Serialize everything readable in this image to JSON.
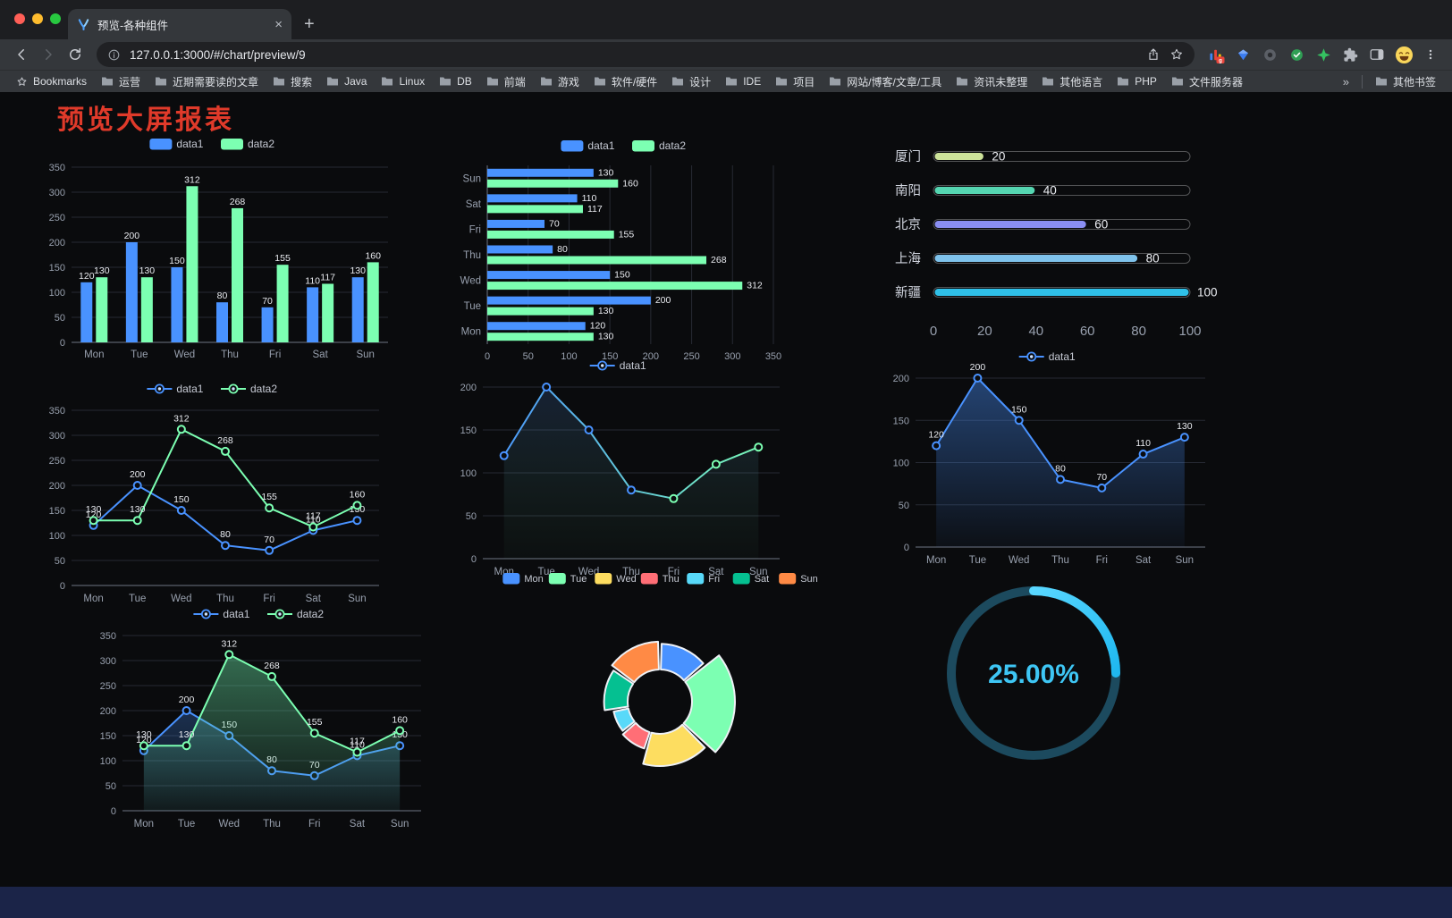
{
  "browser": {
    "traffic_lights": [
      "#ff5f57",
      "#febc2e",
      "#28c840"
    ],
    "tab": {
      "title": "预览-各种组件"
    },
    "new_tab_label": "+",
    "url": "127.0.0.1:3000/#/chart/preview/9",
    "bookmarks_label": "Bookmarks",
    "bookmarks": [
      "运营",
      "近期需要读的文章",
      "搜索",
      "Java",
      "Linux",
      "DB",
      "前端",
      "游戏",
      "软件/硬件",
      "设计",
      "IDE",
      "项目",
      "网站/博客/文章/工具",
      "资讯未整理",
      "其他语言",
      "PHP",
      "文件服务器"
    ],
    "bookmarks_overflow": "»",
    "other_bookmarks": "其他书签"
  },
  "page": {
    "title": "预览大屏报表",
    "title_color": "#e03a2a",
    "background": "#0a0b0d",
    "footer_color": "#1b2448"
  },
  "chart_data": [
    {
      "id": "bar-grouped",
      "type": "bar",
      "legend_position": "top",
      "categories": [
        "Mon",
        "Tue",
        "Wed",
        "Thu",
        "Fri",
        "Sat",
        "Sun"
      ],
      "series": [
        {
          "name": "data1",
          "color": "#4992ff",
          "values": [
            120,
            200,
            150,
            80,
            70,
            110,
            130
          ]
        },
        {
          "name": "data2",
          "color": "#7cffb2",
          "values": [
            130,
            130,
            312,
            268,
            155,
            117,
            160
          ]
        }
      ],
      "ylim": [
        0,
        350
      ],
      "ystep": 50,
      "value_labels": true,
      "grid": true
    },
    {
      "id": "bar-horizontal",
      "type": "bar-horizontal",
      "legend_position": "top",
      "categories": [
        "Mon",
        "Tue",
        "Wed",
        "Thu",
        "Fri",
        "Sat",
        "Sun"
      ],
      "series": [
        {
          "name": "data1",
          "color": "#4992ff",
          "values": [
            120,
            200,
            150,
            80,
            70,
            110,
            130
          ]
        },
        {
          "name": "data2",
          "color": "#7cffb2",
          "values": [
            130,
            130,
            312,
            268,
            155,
            117,
            160
          ]
        }
      ],
      "xlim": [
        0,
        350
      ],
      "xstep": 50,
      "value_labels": true,
      "grid": true
    },
    {
      "id": "capsule",
      "type": "capsule-bar",
      "rows": [
        {
          "label": "厦门",
          "value": 20,
          "color": "#cde39a"
        },
        {
          "label": "南阳",
          "value": 40,
          "color": "#55d6b1"
        },
        {
          "label": "北京",
          "value": 60,
          "color": "#8a8ef2"
        },
        {
          "label": "上海",
          "value": 80,
          "color": "#7fc3ec"
        },
        {
          "label": "新疆",
          "value": 100,
          "color": "#2fc0e8"
        }
      ],
      "xlim": [
        0,
        100
      ],
      "xticks": [
        0,
        20,
        40,
        60,
        80,
        100
      ]
    },
    {
      "id": "line-dual",
      "type": "line",
      "legend_position": "top",
      "categories": [
        "Mon",
        "Tue",
        "Wed",
        "Thu",
        "Fri",
        "Sat",
        "Sun"
      ],
      "series": [
        {
          "name": "data1",
          "color": "#4992ff",
          "values": [
            120,
            200,
            150,
            80,
            70,
            110,
            130
          ]
        },
        {
          "name": "data2",
          "color": "#7cffb2",
          "values": [
            130,
            130,
            312,
            268,
            155,
            117,
            160
          ]
        }
      ],
      "ylim": [
        0,
        350
      ],
      "ystep": 50,
      "value_labels": true,
      "grid": true
    },
    {
      "id": "line-gradient",
      "type": "line",
      "legend_position": "top",
      "categories": [
        "Mon",
        "Tue",
        "Wed",
        "Thu",
        "Fri",
        "Sat",
        "Sun"
      ],
      "series": [
        {
          "name": "data1",
          "color": "#4992ff",
          "gradient": [
            "#4992ff",
            "#7cffb2"
          ],
          "values": [
            120,
            200,
            150,
            80,
            70,
            110,
            130
          ],
          "area": [
            "rgba(90,150,255,0.16)",
            "rgba(124,255,178,0.02)"
          ]
        }
      ],
      "ylim": [
        0,
        200
      ],
      "ystep": 50,
      "value_labels": false,
      "grid": true
    },
    {
      "id": "line-area",
      "type": "line",
      "legend_position": "top",
      "categories": [
        "Mon",
        "Tue",
        "Wed",
        "Thu",
        "Fri",
        "Sat",
        "Sun"
      ],
      "series": [
        {
          "name": "data1",
          "color": "#4992ff",
          "values": [
            120,
            200,
            150,
            80,
            70,
            110,
            130
          ],
          "area": [
            "rgba(73,146,255,0.42)",
            "rgba(73,146,255,0.04)"
          ]
        }
      ],
      "ylim": [
        0,
        200
      ],
      "ystep": 50,
      "value_labels": true,
      "grid": true
    },
    {
      "id": "line-dual-area",
      "type": "line",
      "legend_position": "top",
      "categories": [
        "Mon",
        "Tue",
        "Wed",
        "Thu",
        "Fri",
        "Sat",
        "Sun"
      ],
      "series": [
        {
          "name": "data1",
          "color": "#4992ff",
          "values": [
            120,
            200,
            150,
            80,
            70,
            110,
            130
          ],
          "area": [
            "rgba(73,146,255,0.28)",
            "rgba(73,146,255,0.03)"
          ]
        },
        {
          "name": "data2",
          "color": "#7cffb2",
          "values": [
            130,
            130,
            312,
            268,
            155,
            117,
            160
          ],
          "area": [
            "rgba(103,224,161,0.45)",
            "rgba(103,224,161,0.05)"
          ]
        }
      ],
      "ylim": [
        0,
        350
      ],
      "ystep": 50,
      "value_labels": true,
      "grid": true
    },
    {
      "id": "rose-pie",
      "type": "pie-rose",
      "legend_position": "top",
      "items": [
        {
          "name": "Mon",
          "value": 120,
          "color": "#4992ff"
        },
        {
          "name": "Tue",
          "value": 200,
          "color": "#7cffb2"
        },
        {
          "name": "Wed",
          "value": 150,
          "color": "#fddd60"
        },
        {
          "name": "Thu",
          "value": 80,
          "color": "#ff6e76"
        },
        {
          "name": "Fri",
          "value": 70,
          "color": "#58d9f9"
        },
        {
          "name": "Sat",
          "value": 110,
          "color": "#05c091"
        },
        {
          "name": "Sun",
          "value": 130,
          "color": "#ff8a45"
        }
      ]
    },
    {
      "id": "ring-progress",
      "type": "ring-progress",
      "value": 25,
      "label": "25.00%",
      "color": "#1fb8f0",
      "color_light": "#59d7ff",
      "track_color": "#1c4a5e",
      "text_color": "#3ec6f4"
    }
  ]
}
